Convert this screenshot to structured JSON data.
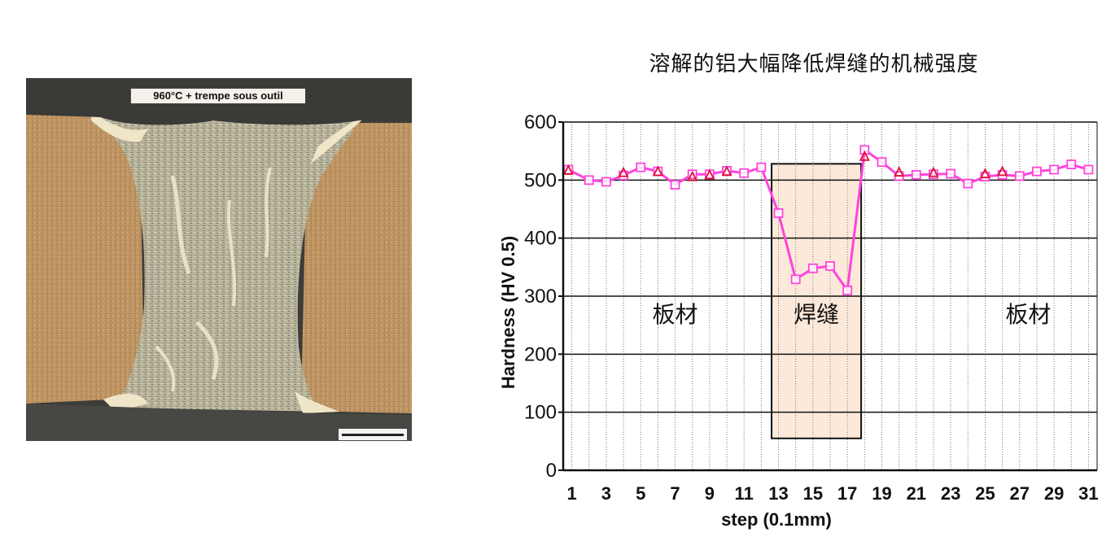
{
  "micrograph": {
    "caption": "960°C + trempe sous outil"
  },
  "chart_title": "溶解的铝大幅降低焊缝的机械强度",
  "chart_data": {
    "type": "line",
    "title": "溶解的铝大幅降低焊缝的机械强度",
    "xlabel": "step (0.1mm)",
    "ylabel": "Hardness (HV 0.5)",
    "xlim": [
      0.5,
      31.5
    ],
    "ylim": [
      0,
      600
    ],
    "x_ticks": [
      "1",
      "3",
      "5",
      "7",
      "9",
      "11",
      "13",
      "15",
      "17",
      "19",
      "21",
      "23",
      "25",
      "27",
      "29",
      "31"
    ],
    "y_ticks": [
      "0",
      "100",
      "200",
      "300",
      "400",
      "500",
      "600"
    ],
    "grid": true,
    "series": [
      {
        "marker": "square",
        "color": "#ff44dd",
        "x": [
          0.8,
          2,
          3,
          4,
          5,
          6,
          7,
          8,
          9,
          10,
          11,
          12,
          13,
          14,
          15,
          16,
          17,
          18,
          19,
          20,
          21,
          22,
          23,
          24,
          25,
          26,
          27,
          28,
          29,
          30,
          31
        ],
        "values": [
          518,
          500,
          497,
          508,
          522,
          515,
          492,
          510,
          510,
          516,
          512,
          522,
          443,
          329,
          348,
          352,
          310,
          552,
          531,
          507,
          509,
          510,
          511,
          494,
          506,
          509,
          507,
          515,
          518,
          527,
          518
        ]
      },
      {
        "marker": "triangle",
        "color": "#dd1133",
        "x": [
          0.8,
          4,
          6,
          8,
          9,
          10,
          18,
          20,
          22,
          25,
          26
        ],
        "values": [
          516,
          512,
          514,
          505,
          508,
          514,
          540,
          513,
          512,
          510,
          514
        ]
      }
    ],
    "regions": [
      {
        "label": "板材",
        "x_center": 7
      },
      {
        "label": "焊缝",
        "x_from": 12.6,
        "x_to": 17.8,
        "y_from": 55,
        "y_to": 528,
        "fill": "#fde9d9",
        "label_x": 15.2
      },
      {
        "label": "板材",
        "x_center": 27.5
      }
    ],
    "region_label_y": 255
  }
}
